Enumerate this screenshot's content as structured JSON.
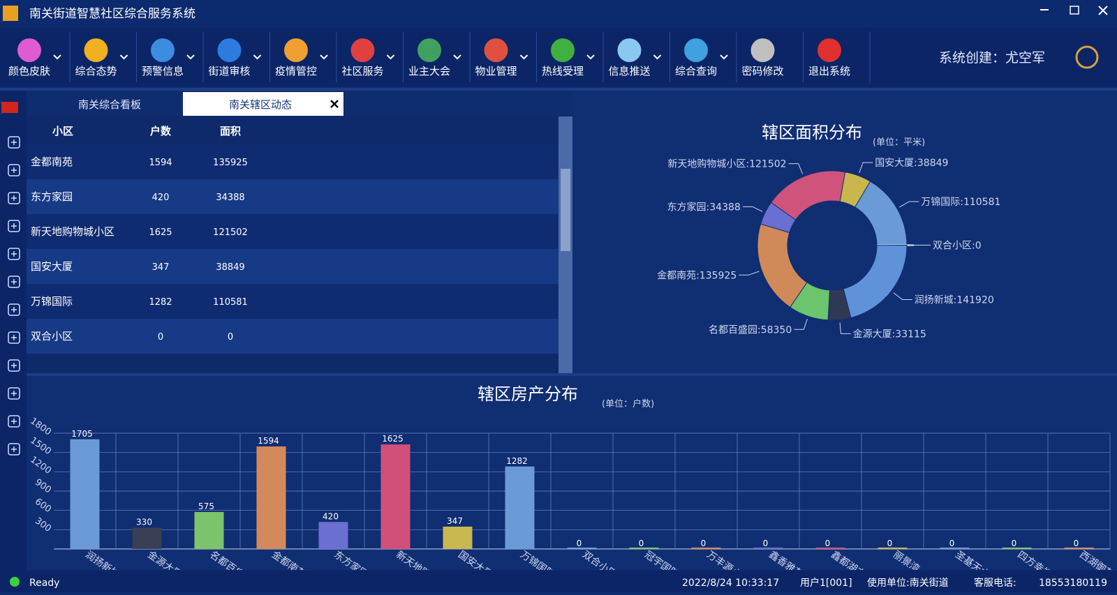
{
  "window": {
    "title": "南关街道智慧社区综合服务系统"
  },
  "toolbar": {
    "items": [
      "颜色皮肤",
      "综合态势",
      "预警信息",
      "街道审核",
      "疫情管控",
      "社区服务",
      "业主大会",
      "物业管理",
      "热线受理",
      "信息推送",
      "综合查询",
      "密码修改",
      "退出系统"
    ],
    "creator": "系统创建：尤空军"
  },
  "tabs": [
    "南关综合看板",
    "南关辖区动态"
  ],
  "table": {
    "columns": [
      "小区",
      "户数",
      "面积"
    ],
    "rows": [
      [
        "金都南苑",
        "1594",
        "135925"
      ],
      [
        "东方家园",
        "420",
        "34388"
      ],
      [
        "新天地购物城小区",
        "1625",
        "121502"
      ],
      [
        "国安大厦",
        "347",
        "38849"
      ],
      [
        "万锦国际",
        "1282",
        "110581"
      ],
      [
        "双合小区",
        "0",
        "0"
      ]
    ]
  },
  "chart_data": [
    {
      "type": "pie",
      "title": "辖区面积分布",
      "subtitle": "(单位：平米)",
      "categories": [
        "国安大厦",
        "万锦国际",
        "双合小区",
        "润扬新城",
        "金源大厦",
        "名都百盛园",
        "金都南苑",
        "东方家园",
        "新天地购物城小区"
      ],
      "values": [
        38849,
        110581,
        0,
        141920,
        33115,
        58350,
        135925,
        34388,
        121502
      ],
      "value_labels": [
        "国安大厦:38849",
        "万锦国际:110581",
        "双合小区:0",
        "润扬新城:141920",
        "金源大厦:33115",
        "名都百盛园:58350",
        "金都南苑:135925",
        "东方家园:34388",
        "新天地购物城小区:121502"
      ],
      "colors": [
        "#c9b74e",
        "#6b9bd6",
        "#ffffff",
        "#5f92d8",
        "#2e3a55",
        "#6cc46c",
        "#d08a5a",
        "#6a70d2",
        "#d0537c"
      ]
    },
    {
      "type": "bar",
      "title": "辖区房产分布",
      "subtitle": "(单位：户数)",
      "categories": [
        "润扬新城",
        "金源大厦",
        "名都百盛园",
        "金都南苑",
        "东方家园",
        "新天地购物城小区",
        "国安大厦",
        "万锦国际",
        "双合小区",
        "冠宇国际",
        "万丰源小区",
        "鑫香雅苑",
        "鑫都湖交汇",
        "丽景湾",
        "圣基天水",
        "四方幸福",
        "西湖御苑"
      ],
      "values": [
        1705,
        330,
        575,
        1594,
        420,
        1625,
        347,
        1282,
        0,
        0,
        0,
        0,
        0,
        0,
        0,
        0,
        0
      ],
      "colors": [
        "#6b9bd6",
        "#3a3f55",
        "#7cc46c",
        "#d4895a",
        "#6a6fd0",
        "#d0507a",
        "#c8b850",
        "#6b9bd6",
        "#6b9bd6",
        "#7cc46c",
        "#d4895a",
        "#6a6fd0",
        "#d0507a",
        "#c8b850",
        "#6b9bd6",
        "#7cc46c",
        "#d4895a"
      ],
      "ylim": [
        0,
        1800
      ],
      "yticks": [
        300,
        600,
        900,
        1200,
        1500,
        1800
      ],
      "grid": true
    }
  ],
  "status": {
    "state": "Ready",
    "datetime": "2022/8/24 10:33:17",
    "user": "用户1[001]",
    "unit": "使用单位:南关街道",
    "service": "客服电话:",
    "phone": "18553180119"
  }
}
